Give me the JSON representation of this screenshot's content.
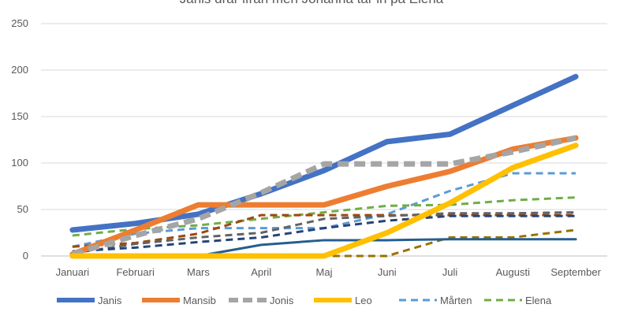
{
  "chart_data": {
    "type": "line",
    "title": "Janis drar ifrån men Johanna tar in på Elena",
    "xlabel": "",
    "ylabel": "",
    "ylim": [
      0,
      250
    ],
    "yticks": [
      0,
      50,
      100,
      150,
      200,
      250
    ],
    "grid": true,
    "legend_position": "bottom",
    "categories": [
      "Januari",
      "Februari",
      "Mars",
      "April",
      "Maj",
      "Juni",
      "Juli",
      "Augusti",
      "September"
    ],
    "series": [
      {
        "name": "Janis",
        "color": "#4472C4",
        "style": "solid",
        "weight": "bold",
        "values": [
          28,
          35,
          45,
          67,
          92,
          123,
          131,
          162,
          193
        ]
      },
      {
        "name": "Mansib",
        "color": "#ED7D31",
        "style": "solid",
        "weight": "bold",
        "values": [
          2,
          28,
          55,
          55,
          55,
          75,
          91,
          115,
          127
        ]
      },
      {
        "name": "Jonis",
        "color": "#A5A5A5",
        "style": "dashed",
        "weight": "bold",
        "values": [
          2,
          22,
          40,
          68,
          99,
          99,
          99,
          112,
          127
        ]
      },
      {
        "name": "Leo",
        "color": "#FFC000",
        "style": "solid",
        "weight": "bold",
        "values": [
          0,
          0,
          0,
          0,
          0,
          25,
          57,
          95,
          119
        ]
      },
      {
        "name": "Mårten",
        "color": "#5B9BD5",
        "style": "dashed",
        "weight": "normal",
        "values": [
          10,
          24,
          30,
          30,
          30,
          45,
          70,
          89,
          89
        ]
      },
      {
        "name": "Elena",
        "color": "#70AD47",
        "style": "dashed",
        "weight": "normal",
        "values": [
          22,
          29,
          33,
          40,
          47,
          54,
          55,
          60,
          63
        ]
      },
      {
        "name": "",
        "color": "#9E480E",
        "style": "dashed",
        "weight": "normal",
        "values": [
          10,
          14,
          24,
          44,
          44,
          44,
          44,
          44,
          44
        ]
      },
      {
        "name": "",
        "color": "#636363",
        "style": "dashed",
        "weight": "normal",
        "values": [
          3,
          13,
          20,
          25,
          40,
          43,
          46,
          46,
          47
        ]
      },
      {
        "name": "",
        "color": "#264478",
        "style": "dashed",
        "weight": "normal",
        "values": [
          5,
          9,
          15,
          20,
          30,
          38,
          43,
          43,
          43
        ]
      },
      {
        "name": "",
        "color": "#997300",
        "style": "dashed",
        "weight": "normal",
        "values": [
          0,
          0,
          0,
          0,
          0,
          0,
          20,
          20,
          28
        ]
      },
      {
        "name": "",
        "color": "#255E91",
        "style": "solid",
        "weight": "normal",
        "values": [
          0,
          0,
          0,
          12,
          17,
          17,
          18,
          18,
          18
        ]
      }
    ]
  }
}
